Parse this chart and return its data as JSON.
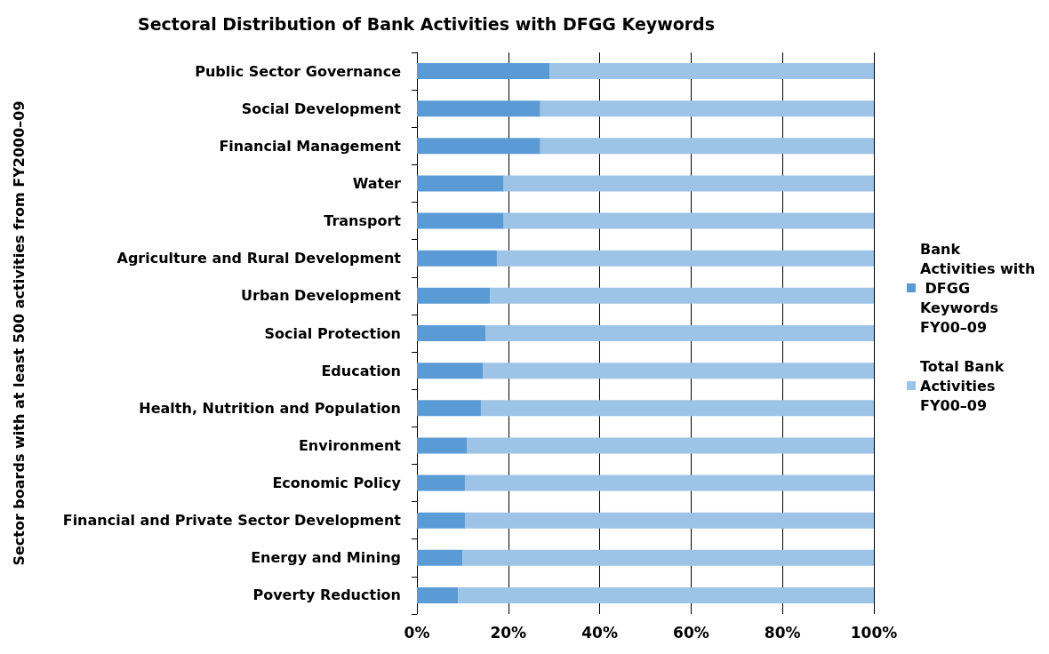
{
  "chart_data": {
    "type": "bar",
    "orientation": "horizontal",
    "stacked": true,
    "title": "Sectoral Distribution of Bank Activities with DFGG Keywords",
    "ylabel": "Sector boards with at least 500 activities from FY2000–09",
    "categories": [
      "Public Sector Governance",
      "Social Development",
      "Financial Management",
      "Water",
      "Transport",
      "Agriculture and Rural Development",
      "Urban Development",
      "Social Protection",
      "Education",
      "Health, Nutrition and Population",
      "Environment",
      "Economic Policy",
      "Financial and Private Sector Development",
      "Energy and Mining",
      "Poverty Reduction"
    ],
    "series": [
      {
        "name": "Bank Activities with DFGG Keywords FY00–09",
        "color": "#5b9bd5",
        "values": [
          29,
          27,
          27,
          19,
          19,
          17.5,
          16,
          15,
          14.5,
          14,
          11,
          10.5,
          10.5,
          10,
          9
        ]
      },
      {
        "name": "Total Bank Activities FY00–09",
        "color": "#9dc3e6",
        "values": [
          71,
          73,
          73,
          81,
          81,
          82.5,
          84,
          85,
          85.5,
          86,
          89,
          89.5,
          89.5,
          90,
          91
        ]
      }
    ],
    "xlim": [
      0,
      100
    ],
    "xticks": [
      {
        "value": 0,
        "label": "0%"
      },
      {
        "value": 20,
        "label": "20%"
      },
      {
        "value": 40,
        "label": "40%"
      },
      {
        "value": 60,
        "label": "60%"
      },
      {
        "value": 80,
        "label": "80%"
      },
      {
        "value": 100,
        "label": "100%"
      }
    ],
    "grid": "x",
    "legend": "right"
  }
}
